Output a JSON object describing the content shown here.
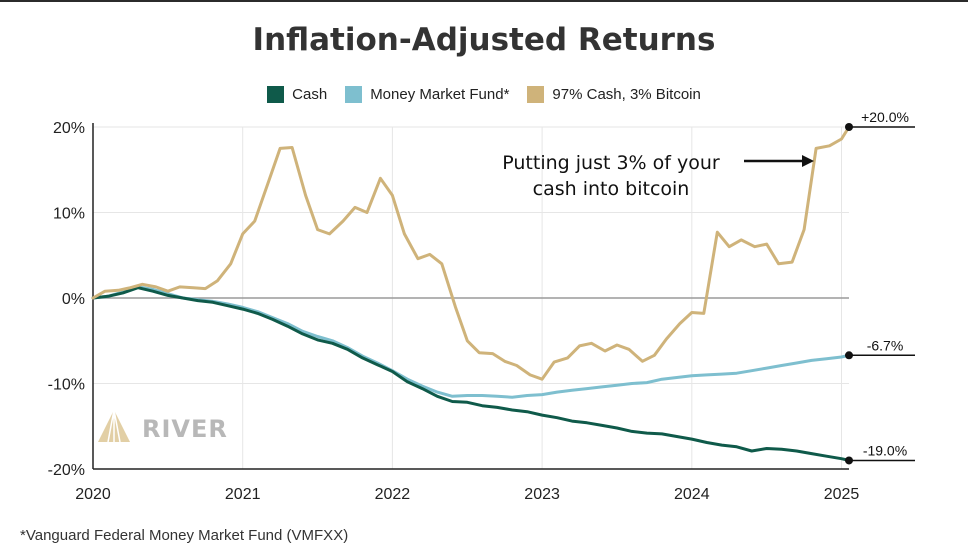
{
  "colors": {
    "cash": "#0f5a4a",
    "mmf": "#7ebfcf",
    "btc": "#cfb37a",
    "grid": "#e6e6e6",
    "zero": "#9a9a9a",
    "axis": "#222222"
  },
  "footnote": "*Vanguard Federal Money Market Fund (VMFXX)",
  "brand": {
    "name": "RIVER",
    "icon": "river-logo-icon"
  },
  "annotation": {
    "line1": "Putting just 3% of your",
    "line2": "cash into bitcoin"
  },
  "chart_data": {
    "type": "line",
    "title": "Inflation-Adjusted Returns",
    "xlabel": "",
    "ylabel": "",
    "xlim": [
      2020.0,
      2025.05
    ],
    "ylim": [
      -20,
      20
    ],
    "x_ticks": [
      2020,
      2021,
      2022,
      2023,
      2024,
      2025
    ],
    "x_tick_labels": [
      "2020",
      "2021",
      "2022",
      "2023",
      "2024",
      "2025"
    ],
    "y_ticks": [
      20,
      10,
      0,
      -10,
      -20
    ],
    "y_tick_labels": [
      "20%",
      "10%",
      "0%",
      "-10%",
      "-20%"
    ],
    "grid": true,
    "legend_position": "top-center",
    "series": [
      {
        "name": "Cash",
        "color": "#0f5a4a",
        "end_label": "-19.0%",
        "points": [
          [
            2020.0,
            0.0
          ],
          [
            2020.1,
            0.2
          ],
          [
            2020.2,
            0.6
          ],
          [
            2020.3,
            1.2
          ],
          [
            2020.4,
            0.8
          ],
          [
            2020.5,
            0.3
          ],
          [
            2020.6,
            0.0
          ],
          [
            2020.7,
            -0.3
          ],
          [
            2020.8,
            -0.5
          ],
          [
            2020.9,
            -0.9
          ],
          [
            2021.0,
            -1.3
          ],
          [
            2021.1,
            -1.8
          ],
          [
            2021.2,
            -2.5
          ],
          [
            2021.3,
            -3.3
          ],
          [
            2021.4,
            -4.2
          ],
          [
            2021.5,
            -4.9
          ],
          [
            2021.6,
            -5.3
          ],
          [
            2021.7,
            -6.0
          ],
          [
            2021.8,
            -7.0
          ],
          [
            2021.9,
            -7.8
          ],
          [
            2022.0,
            -8.6
          ],
          [
            2022.1,
            -9.8
          ],
          [
            2022.2,
            -10.6
          ],
          [
            2022.3,
            -11.5
          ],
          [
            2022.4,
            -12.1
          ],
          [
            2022.5,
            -12.2
          ],
          [
            2022.6,
            -12.6
          ],
          [
            2022.7,
            -12.8
          ],
          [
            2022.8,
            -13.1
          ],
          [
            2022.9,
            -13.3
          ],
          [
            2023.0,
            -13.7
          ],
          [
            2023.1,
            -14.0
          ],
          [
            2023.2,
            -14.4
          ],
          [
            2023.3,
            -14.6
          ],
          [
            2023.4,
            -14.9
          ],
          [
            2023.5,
            -15.2
          ],
          [
            2023.6,
            -15.6
          ],
          [
            2023.7,
            -15.8
          ],
          [
            2023.8,
            -15.9
          ],
          [
            2023.9,
            -16.2
          ],
          [
            2024.0,
            -16.5
          ],
          [
            2024.1,
            -16.9
          ],
          [
            2024.2,
            -17.2
          ],
          [
            2024.3,
            -17.4
          ],
          [
            2024.4,
            -17.9
          ],
          [
            2024.5,
            -17.6
          ],
          [
            2024.6,
            -17.7
          ],
          [
            2024.7,
            -17.9
          ],
          [
            2024.8,
            -18.2
          ],
          [
            2024.9,
            -18.5
          ],
          [
            2025.0,
            -18.8
          ],
          [
            2025.05,
            -19.0
          ]
        ]
      },
      {
        "name": "Money Market Fund*",
        "color": "#7ebfcf",
        "end_label": "-6.7%",
        "points": [
          [
            2020.0,
            0.0
          ],
          [
            2020.1,
            0.2
          ],
          [
            2020.2,
            0.7
          ],
          [
            2020.3,
            1.3
          ],
          [
            2020.4,
            1.0
          ],
          [
            2020.5,
            0.5
          ],
          [
            2020.6,
            0.0
          ],
          [
            2020.7,
            -0.2
          ],
          [
            2020.8,
            -0.4
          ],
          [
            2020.9,
            -0.7
          ],
          [
            2021.0,
            -1.1
          ],
          [
            2021.1,
            -1.6
          ],
          [
            2021.2,
            -2.3
          ],
          [
            2021.3,
            -3.0
          ],
          [
            2021.4,
            -3.9
          ],
          [
            2021.5,
            -4.5
          ],
          [
            2021.6,
            -5.0
          ],
          [
            2021.7,
            -5.8
          ],
          [
            2021.8,
            -6.8
          ],
          [
            2021.9,
            -7.6
          ],
          [
            2022.0,
            -8.5
          ],
          [
            2022.1,
            -9.5
          ],
          [
            2022.2,
            -10.3
          ],
          [
            2022.3,
            -11.0
          ],
          [
            2022.4,
            -11.5
          ],
          [
            2022.5,
            -11.4
          ],
          [
            2022.6,
            -11.4
          ],
          [
            2022.7,
            -11.5
          ],
          [
            2022.8,
            -11.6
          ],
          [
            2022.9,
            -11.4
          ],
          [
            2023.0,
            -11.3
          ],
          [
            2023.1,
            -11.0
          ],
          [
            2023.2,
            -10.8
          ],
          [
            2023.3,
            -10.6
          ],
          [
            2023.4,
            -10.4
          ],
          [
            2023.5,
            -10.2
          ],
          [
            2023.6,
            -10.0
          ],
          [
            2023.7,
            -9.9
          ],
          [
            2023.8,
            -9.5
          ],
          [
            2023.9,
            -9.3
          ],
          [
            2024.0,
            -9.1
          ],
          [
            2024.1,
            -9.0
          ],
          [
            2024.2,
            -8.9
          ],
          [
            2024.3,
            -8.8
          ],
          [
            2024.4,
            -8.5
          ],
          [
            2024.5,
            -8.2
          ],
          [
            2024.6,
            -7.9
          ],
          [
            2024.7,
            -7.6
          ],
          [
            2024.8,
            -7.3
          ],
          [
            2024.9,
            -7.1
          ],
          [
            2025.0,
            -6.9
          ],
          [
            2025.05,
            -6.7
          ]
        ]
      },
      {
        "name": "97% Cash, 3% Bitcoin",
        "color": "#cfb37a",
        "end_label": "+20.0%",
        "points": [
          [
            2020.0,
            0.0
          ],
          [
            2020.08,
            0.8
          ],
          [
            2020.17,
            0.9
          ],
          [
            2020.25,
            1.2
          ],
          [
            2020.33,
            1.6
          ],
          [
            2020.42,
            1.3
          ],
          [
            2020.5,
            0.8
          ],
          [
            2020.58,
            1.3
          ],
          [
            2020.67,
            1.2
          ],
          [
            2020.75,
            1.1
          ],
          [
            2020.83,
            2.0
          ],
          [
            2020.92,
            4.0
          ],
          [
            2021.0,
            7.5
          ],
          [
            2021.08,
            9.0
          ],
          [
            2021.17,
            13.5
          ],
          [
            2021.25,
            17.5
          ],
          [
            2021.33,
            17.6
          ],
          [
            2021.42,
            12.0
          ],
          [
            2021.5,
            8.0
          ],
          [
            2021.58,
            7.5
          ],
          [
            2021.67,
            9.0
          ],
          [
            2021.75,
            10.6
          ],
          [
            2021.83,
            10.0
          ],
          [
            2021.92,
            14.0
          ],
          [
            2022.0,
            12.0
          ],
          [
            2022.08,
            7.5
          ],
          [
            2022.17,
            4.6
          ],
          [
            2022.25,
            5.1
          ],
          [
            2022.33,
            4.0
          ],
          [
            2022.42,
            -1.0
          ],
          [
            2022.5,
            -5.0
          ],
          [
            2022.58,
            -6.4
          ],
          [
            2022.67,
            -6.5
          ],
          [
            2022.75,
            -7.4
          ],
          [
            2022.83,
            -7.9
          ],
          [
            2022.92,
            -9.0
          ],
          [
            2023.0,
            -9.5
          ],
          [
            2023.08,
            -7.5
          ],
          [
            2023.17,
            -7.0
          ],
          [
            2023.25,
            -5.6
          ],
          [
            2023.33,
            -5.3
          ],
          [
            2023.42,
            -6.2
          ],
          [
            2023.5,
            -5.5
          ],
          [
            2023.58,
            -6.0
          ],
          [
            2023.67,
            -7.4
          ],
          [
            2023.75,
            -6.7
          ],
          [
            2023.83,
            -4.8
          ],
          [
            2023.92,
            -3.0
          ],
          [
            2024.0,
            -1.7
          ],
          [
            2024.08,
            -1.8
          ],
          [
            2024.17,
            7.7
          ],
          [
            2024.25,
            6.0
          ],
          [
            2024.33,
            6.8
          ],
          [
            2024.42,
            6.0
          ],
          [
            2024.5,
            6.3
          ],
          [
            2024.58,
            4.0
          ],
          [
            2024.67,
            4.2
          ],
          [
            2024.75,
            8.0
          ],
          [
            2024.83,
            17.5
          ],
          [
            2024.92,
            17.8
          ],
          [
            2025.0,
            18.6
          ],
          [
            2025.05,
            20.0
          ]
        ]
      }
    ],
    "annotations": [
      {
        "text": "Putting just 3% of your cash into bitcoin",
        "target_series": "97% Cash, 3% Bitcoin"
      }
    ]
  }
}
